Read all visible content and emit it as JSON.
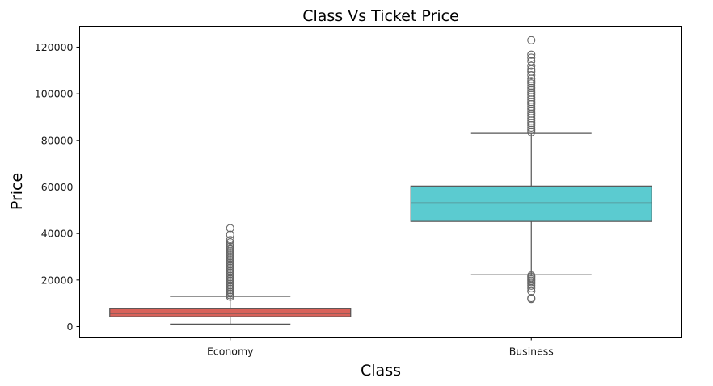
{
  "chart_data": {
    "type": "box",
    "title": "Class Vs Ticket Price",
    "xlabel": "Class",
    "ylabel": "Price",
    "ylim": [
      -4500,
      129000
    ],
    "yticks": [
      0,
      20000,
      40000,
      60000,
      80000,
      100000,
      120000
    ],
    "grid": false,
    "categories": [
      "Economy",
      "Business"
    ],
    "boxes": [
      {
        "category": "Economy",
        "color": "#d9625a",
        "whisker_low": 1100,
        "q1": 4300,
        "median": 5800,
        "q3": 7700,
        "whisker_high": 13000,
        "outliers": [
          12800,
          13500,
          14200,
          14900,
          15600,
          16300,
          17000,
          17700,
          18400,
          19100,
          19800,
          20500,
          21200,
          21900,
          22600,
          23300,
          24000,
          24700,
          25400,
          26100,
          26800,
          27500,
          28200,
          28900,
          29600,
          30300,
          31000,
          31700,
          32400,
          33100,
          33800,
          34500,
          35300,
          36200,
          37200,
          39500,
          42300
        ]
      },
      {
        "category": "Business",
        "color": "#5bcbd0",
        "whisker_low": 22300,
        "q1": 45200,
        "median": 53100,
        "q3": 60400,
        "whisker_high": 83000,
        "outliers": [
          11900,
          12300,
          15200,
          16500,
          17600,
          18400,
          19100,
          19700,
          20300,
          20900,
          21500,
          22000,
          83500,
          84500,
          85500,
          86500,
          87500,
          88500,
          89500,
          90500,
          91500,
          92500,
          93500,
          94500,
          95500,
          96500,
          97500,
          98500,
          99500,
          100500,
          101500,
          102500,
          103500,
          104500,
          105500,
          106500,
          108000,
          109500,
          110500,
          112000,
          114000,
          115500,
          116800,
          123000
        ]
      }
    ],
    "colors": {
      "line": "#555555",
      "outlier_edge": "#666666",
      "axes": "#000000"
    }
  }
}
